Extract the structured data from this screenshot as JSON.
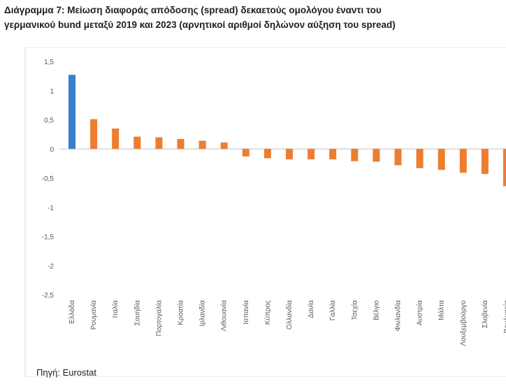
{
  "title": "Διάγραμμα 7: Μείωση διαφοράς απόδοσης (spread) δεκαετούς ομολόγου έναντι του γερμανικού bund μεταξύ 2019 και 2023 (αρνητικοί αριθμοί δηλώνον αύξηση του spread)",
  "source": "Πηγή: Eurostat",
  "colors": {
    "highlight": "#3a7dc9",
    "bars": "#ed7d31",
    "axis_text": "#595959",
    "axis_line": "#bfbfbf"
  },
  "chart_data": {
    "type": "bar",
    "title": "Διάγραμμα 7: Μείωση διαφοράς απόδοσης (spread) δεκαετούς ομολόγου έναντι του γερμανικού bund μεταξύ 2019 και 2023 (αρνητικοί αριθμοί δηλώνον αύξηση του spread)",
    "xlabel": "",
    "ylabel": "",
    "ylim": [
      -2.5,
      1.5
    ],
    "yticks": [
      1.5,
      1,
      0.5,
      0,
      -0.5,
      -1,
      -1.5,
      -2,
      -2.5
    ],
    "ytick_labels": [
      "1,5",
      "1",
      "0,5",
      "0",
      "-0,5",
      "-1",
      "-1,5",
      "-2",
      "-2,5"
    ],
    "grid": false,
    "legend": "none",
    "highlight_category": "Ελλάδα",
    "categories": [
      "Ελλάδα",
      "Ρουμανία",
      "Ιταλία",
      "Σουηδία",
      "Πορτογαλία",
      "Κροατία",
      "Ιρλανδία",
      "Λιθουανία",
      "Ισπανία",
      "Κύπρος",
      "Ολλανδία",
      "Δανία",
      "Γαλλία",
      "Τσεχία",
      "Βέλγιο",
      "Φινλανδία",
      "Αυστρία",
      "Μάλτα",
      "Λουξεμβούργο",
      "Σλοβενία",
      "Βουλγαρία"
    ],
    "values": [
      1.27,
      0.51,
      0.35,
      0.21,
      0.2,
      0.17,
      0.14,
      0.11,
      -0.13,
      -0.16,
      -0.18,
      -0.18,
      -0.18,
      -0.21,
      -0.22,
      -0.28,
      -0.33,
      -0.36,
      -0.41,
      -0.43,
      -0.64
    ]
  }
}
